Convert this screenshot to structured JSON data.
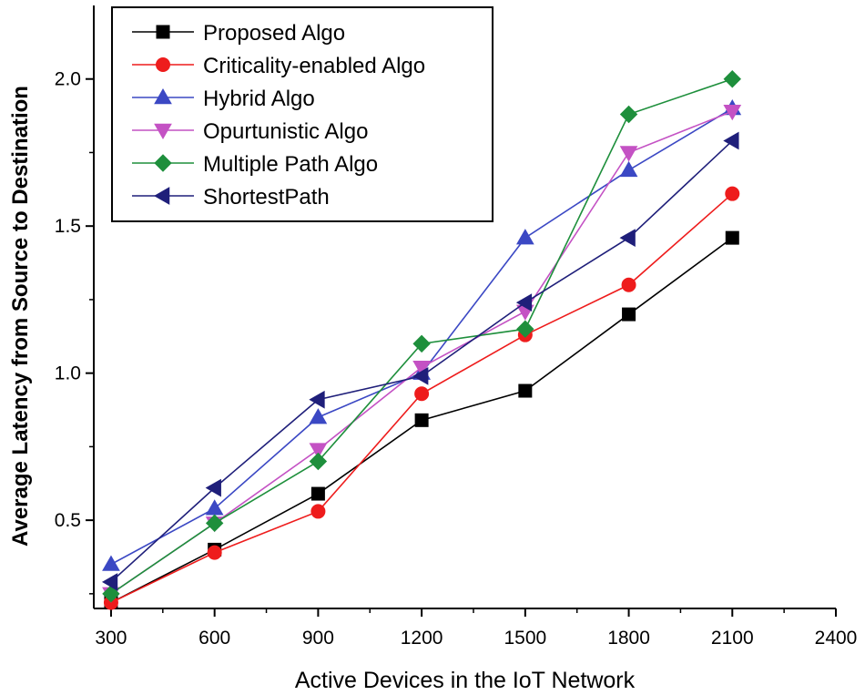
{
  "chart_data": {
    "type": "line",
    "title": "",
    "xlabel": "Active Devices in the IoT Network",
    "ylabel": "Average Latency from Source to Destination",
    "xlim": [
      250,
      2400
    ],
    "ylim": [
      0.2,
      2.25
    ],
    "xticks": [
      300,
      600,
      900,
      1200,
      1500,
      1800,
      2100,
      2400
    ],
    "xtick_labels": [
      "300",
      "600",
      "900",
      "1200",
      "1500",
      "1800",
      "2100",
      "2400"
    ],
    "yticks": [
      0.5,
      1.0,
      1.5,
      2.0
    ],
    "ytick_labels": [
      "0.5",
      "1.0",
      "1.5",
      "2.0"
    ],
    "legend_position": "top-left",
    "x": [
      300,
      600,
      900,
      1200,
      1500,
      1800,
      2100
    ],
    "series": [
      {
        "name": "Proposed Algo",
        "color": "#000000",
        "marker": "square",
        "values": [
          0.22,
          0.4,
          0.59,
          0.84,
          0.94,
          1.2,
          1.46
        ]
      },
      {
        "name": "Criticality-enabled Algo",
        "color": "#ee1c1c",
        "marker": "circle",
        "values": [
          0.22,
          0.39,
          0.53,
          0.93,
          1.13,
          1.3,
          1.61
        ]
      },
      {
        "name": "Hybrid Algo",
        "color": "#3b48c4",
        "marker": "triangle-up",
        "values": [
          0.35,
          0.54,
          0.85,
          1.0,
          1.46,
          1.69,
          1.9
        ]
      },
      {
        "name": "Opurtunistic Algo",
        "color": "#c452c4",
        "marker": "triangle-down",
        "values": [
          0.25,
          0.49,
          0.74,
          1.02,
          1.21,
          1.75,
          1.89
        ]
      },
      {
        "name": "Multiple Path Algo",
        "color": "#1e8f3c",
        "marker": "diamond",
        "values": [
          0.25,
          0.49,
          0.7,
          1.1,
          1.15,
          1.88,
          2.0
        ]
      },
      {
        "name": "ShortestPath",
        "color": "#1f1f7a",
        "marker": "triangle-left",
        "values": [
          0.29,
          0.61,
          0.91,
          0.99,
          1.24,
          1.46,
          1.79
        ]
      }
    ]
  }
}
